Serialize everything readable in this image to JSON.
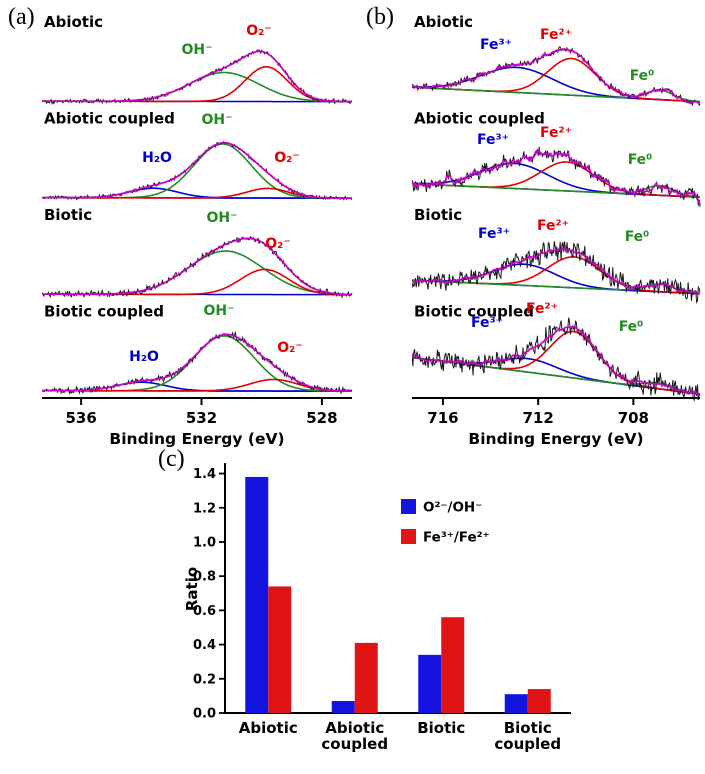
{
  "panels": {
    "a": {
      "tag": "(a)"
    },
    "b": {
      "tag": "(b)"
    },
    "c": {
      "tag": "(c)"
    }
  },
  "chart_data": [
    {
      "id": "a",
      "type": "line",
      "subtype": "xps-O1s-spectra",
      "xlabel": "Binding Energy (eV)",
      "x_axis_reversed": true,
      "x_range": [
        537.3,
        527.0
      ],
      "x_ticks": [
        536,
        532,
        528
      ],
      "colors": {
        "experimental": "#1a1a1a",
        "envelope": "#cc00cc",
        "baseline": "#0000cd"
      },
      "subpanels": [
        {
          "label": "Abiotic",
          "baseline": [
            0.055,
            0.05
          ],
          "noise": 0.016,
          "env_noise": 0,
          "seed": 101,
          "peaks": [
            {
              "key": "oh",
              "species": "OH⁻",
              "color": "#228B22",
              "center": 531.25,
              "sigma": 1.15,
              "height": 0.3,
              "label_fx": 0.5,
              "label_fy": 0.44
            },
            {
              "key": "o2",
              "species": "O₂⁻",
              "color": "#e00000",
              "center": 529.85,
              "sigma": 0.7,
              "height": 0.36,
              "label_fx": 0.7,
              "label_fy": 0.24
            }
          ]
        },
        {
          "label": "Abiotic coupled",
          "baseline": [
            0.055,
            0.05
          ],
          "noise": 0.014,
          "env_noise": 0,
          "seed": 202,
          "peaks": [
            {
              "key": "h2o",
              "species": "H₂O",
              "color": "#0000cd",
              "center": 533.6,
              "sigma": 0.8,
              "height": 0.1,
              "label_fx": 0.37,
              "label_fy": 0.55
            },
            {
              "key": "oh",
              "species": "OH⁻",
              "color": "#228B22",
              "center": 531.3,
              "sigma": 0.95,
              "height": 0.56,
              "label_fx": 0.565,
              "label_fy": 0.16
            },
            {
              "key": "o2",
              "species": "O₂⁻",
              "color": "#e00000",
              "center": 529.8,
              "sigma": 0.7,
              "height": 0.1,
              "label_fx": 0.79,
              "label_fy": 0.55
            }
          ]
        },
        {
          "label": "Biotic",
          "baseline": [
            0.055,
            0.05
          ],
          "noise": 0.022,
          "env_noise": 0,
          "seed": 303,
          "peaks": [
            {
              "key": "oh",
              "species": "OH⁻",
              "color": "#228B22",
              "center": 531.2,
              "sigma": 1.25,
              "height": 0.45,
              "label_fx": 0.58,
              "label_fy": 0.18
            },
            {
              "key": "o2",
              "species": "O₂⁻",
              "color": "#e00000",
              "center": 529.9,
              "sigma": 0.8,
              "height": 0.26,
              "label_fx": 0.76,
              "label_fy": 0.45
            }
          ]
        },
        {
          "label": "Biotic coupled",
          "baseline": [
            0.055,
            0.05
          ],
          "noise": 0.022,
          "env_noise": 0,
          "seed": 404,
          "peaks": [
            {
              "key": "h2o",
              "species": "H₂O",
              "color": "#0000cd",
              "center": 534.0,
              "sigma": 0.8,
              "height": 0.09,
              "label_fx": 0.33,
              "label_fy": 0.62
            },
            {
              "key": "oh",
              "species": "OH⁻",
              "color": "#228B22",
              "center": 531.25,
              "sigma": 1.0,
              "height": 0.57,
              "label_fx": 0.57,
              "label_fy": 0.14
            },
            {
              "key": "o2",
              "species": "O₂⁻",
              "color": "#e00000",
              "center": 529.6,
              "sigma": 0.8,
              "height": 0.12,
              "label_fx": 0.8,
              "label_fy": 0.52
            }
          ]
        }
      ]
    },
    {
      "id": "b",
      "type": "line",
      "subtype": "xps-Fe2p-spectra",
      "xlabel": "Binding Energy (eV)",
      "x_axis_reversed": true,
      "x_range": [
        717.3,
        705.2
      ],
      "x_ticks": [
        716,
        712,
        708
      ],
      "colors": {
        "experimental": "#1a1a1a",
        "envelope": "#cc00cc",
        "baseline": "#0000cd"
      },
      "subpanels": [
        {
          "label": "Abiotic",
          "baseline": [
            0.2,
            0.05
          ],
          "noise": 0.022,
          "env_noise": 0.015,
          "seed": 111,
          "peaks": [
            {
              "key": "fe3",
              "species": "Fe³⁺",
              "color": "#0000cd",
              "center": 712.9,
              "sigma": 1.5,
              "height": 0.26,
              "label_fx": 0.29,
              "label_fy": 0.38
            },
            {
              "key": "fe2",
              "species": "Fe²⁺",
              "color": "#e00000",
              "center": 710.6,
              "sigma": 1.0,
              "height": 0.38,
              "label_fx": 0.5,
              "label_fy": 0.28
            },
            {
              "key": "fe0",
              "species": "Fe⁰",
              "color": "#228B22",
              "center": 706.9,
              "sigma": 0.55,
              "height": 0.1,
              "label_fx": 0.8,
              "label_fy": 0.7
            }
          ]
        },
        {
          "label": "Abiotic coupled",
          "baseline": [
            0.2,
            0.06
          ],
          "noise": 0.045,
          "env_noise": 0.035,
          "seed": 222,
          "peaks": [
            {
              "key": "fe3",
              "species": "Fe³⁺",
              "color": "#0000cd",
              "center": 713.0,
              "sigma": 1.4,
              "height": 0.26,
              "label_fx": 0.28,
              "label_fy": 0.37
            },
            {
              "key": "fe2",
              "species": "Fe²⁺",
              "color": "#e00000",
              "center": 710.8,
              "sigma": 1.1,
              "height": 0.3,
              "label_fx": 0.5,
              "label_fy": 0.3
            },
            {
              "key": "fe0",
              "species": "Fe⁰",
              "color": "#228B22",
              "center": 706.9,
              "sigma": 0.6,
              "height": 0.1,
              "label_fx": 0.79,
              "label_fy": 0.57
            }
          ]
        },
        {
          "label": "Biotic",
          "baseline": [
            0.2,
            0.06
          ],
          "noise": 0.075,
          "env_noise": 0.015,
          "seed": 333,
          "peaks": [
            {
              "key": "fe3",
              "species": "Fe³⁺",
              "color": "#0000cd",
              "center": 712.6,
              "sigma": 1.3,
              "height": 0.22,
              "label_fx": 0.285,
              "label_fy": 0.34
            },
            {
              "key": "fe2",
              "species": "Fe²⁺",
              "color": "#e00000",
              "center": 710.5,
              "sigma": 1.1,
              "height": 0.32,
              "label_fx": 0.49,
              "label_fy": 0.26
            },
            {
              "key": "fe0",
              "species": "Fe⁰",
              "color": "#228B22",
              "center": 706.9,
              "sigma": 0.6,
              "height": 0.08,
              "label_fx": 0.78,
              "label_fy": 0.37
            }
          ]
        },
        {
          "label": "Biotic coupled",
          "baseline": [
            0.4,
            0.02
          ],
          "noise": 0.075,
          "env_noise": 0.015,
          "seed": 444,
          "peaks": [
            {
              "key": "fe3",
              "species": "Fe³⁺",
              "color": "#0000cd",
              "center": 712.4,
              "sigma": 1.2,
              "height": 0.14,
              "label_fx": 0.26,
              "label_fy": 0.26
            },
            {
              "key": "fe2",
              "species": "Fe²⁺",
              "color": "#e00000",
              "center": 710.5,
              "sigma": 1.0,
              "height": 0.48,
              "label_fx": 0.45,
              "label_fy": 0.12
            },
            {
              "key": "fe0",
              "species": "Fe⁰",
              "color": "#228B22",
              "center": 707.0,
              "sigma": 0.6,
              "height": 0.06,
              "label_fx": 0.76,
              "label_fy": 0.31
            }
          ]
        }
      ]
    },
    {
      "id": "c",
      "type": "bar",
      "ylabel": "Ratio",
      "ylim": [
        0,
        1.45
      ],
      "yticks": [
        0,
        0.2,
        0.4,
        0.6,
        0.8,
        1.0,
        1.2,
        1.4
      ],
      "categories": [
        "Abiotic",
        "Abiotic coupled",
        "Biotic",
        "Biotic coupled"
      ],
      "category_label_lines": [
        [
          "Abiotic"
        ],
        [
          "Abiotic",
          "coupled"
        ],
        [
          "Biotic"
        ],
        [
          "Biotic",
          "coupled"
        ]
      ],
      "series": [
        {
          "name": "O²⁻/OH⁻",
          "color": "#1414e0",
          "values": [
            1.38,
            0.07,
            0.34,
            0.11
          ]
        },
        {
          "name": "Fe³⁺/Fe²⁺",
          "color": "#e01414",
          "values": [
            0.74,
            0.41,
            0.56,
            0.14
          ]
        }
      ],
      "legend_position": "upper-right",
      "grid": false
    }
  ]
}
